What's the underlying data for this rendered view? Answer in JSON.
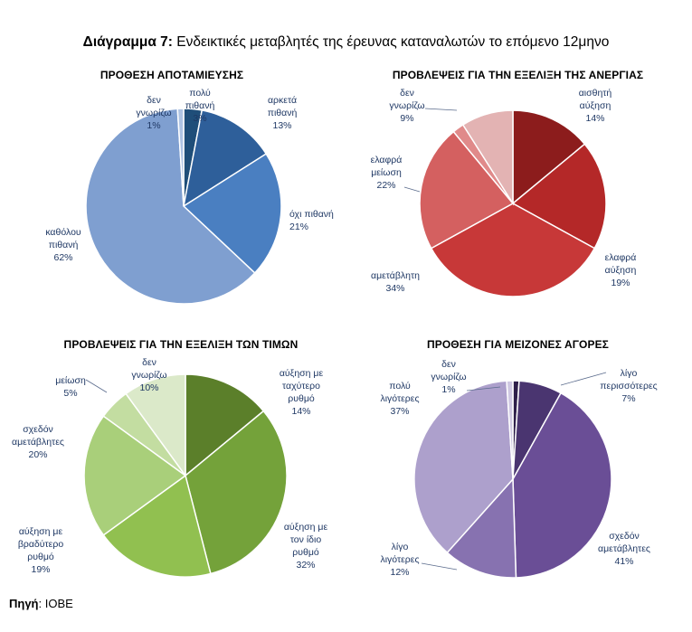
{
  "figure": {
    "title_prefix": "Διάγραμμα 7:",
    "title_text": "Ενδεικτικές μεταβλητές της έρευνας καταναλωτών το επόμενο 12μηνο",
    "source_prefix": "Πηγή",
    "source_text": ": IOBE"
  },
  "chart_data": [
    {
      "type": "pie",
      "title": "ΠΡΟΘΕΣΗ ΑΠΟΤΑΜΙΕΥΣΗΣ",
      "slices": [
        {
          "label": [
            "πολύ",
            "πιθανή"
          ],
          "pct": "3%",
          "value": 3,
          "color": "#1f4e79"
        },
        {
          "label": [
            "αρκετά",
            "πιθανή"
          ],
          "pct": "13%",
          "value": 13,
          "color": "#2e5f9a"
        },
        {
          "label": [
            "όχι πιθανή"
          ],
          "pct": "21%",
          "value": 21,
          "color": "#4a7fc1"
        },
        {
          "label": [
            "καθόλου",
            "πιθανή"
          ],
          "pct": "62%",
          "value": 62,
          "color": "#7f9fd0"
        },
        {
          "label": [
            "δεν",
            "γνωρίζω"
          ],
          "pct": "1%",
          "value": 1,
          "color": "#aec3e3"
        }
      ]
    },
    {
      "type": "pie",
      "title": "ΠΡΟΒΛΕΨΕΙΣ ΓΙΑ ΤΗΝ ΕΞΕΛΙΞΗ ΤΗΣ ΑΝΕΡΓΙΑΣ",
      "slices": [
        {
          "label": [
            "αισθητή",
            "αύξηση"
          ],
          "pct": "14%",
          "value": 14,
          "color": "#8c1c1c"
        },
        {
          "label": [
            "ελαφρά",
            "αύξηση"
          ],
          "pct": "19%",
          "value": 19,
          "color": "#b42828"
        },
        {
          "label": [
            "αμετάβλητη"
          ],
          "pct": "34%",
          "value": 34,
          "color": "#c73838"
        },
        {
          "label": [
            "ελαφρά",
            "μείωση"
          ],
          "pct": "22%",
          "value": 22,
          "color": "#d46060"
        },
        {
          "label": [],
          "pct": "",
          "value": 2,
          "color": "#e08a8a"
        },
        {
          "label": [
            "δεν",
            "γνωρίζω"
          ],
          "pct": "9%",
          "value": 9,
          "color": "#e3b3b3"
        }
      ]
    },
    {
      "type": "pie",
      "title": "ΠΡΟΒΛΕΨΕΙΣ ΓΙΑ ΤΗΝ ΕΞΕΛΙΞΗ ΤΩΝ ΤΙΜΩΝ",
      "slices": [
        {
          "label": [
            "αύξηση με",
            "ταχύτερο",
            "ρυθμό"
          ],
          "pct": "14%",
          "value": 14,
          "color": "#5b7f2a"
        },
        {
          "label": [
            "αύξηση με",
            "τον ίδιο",
            "ρυθμό"
          ],
          "pct": "32%",
          "value": 32,
          "color": "#74a23a"
        },
        {
          "label": [
            "αύξηση με",
            "βραδύτερο",
            "ρυθμό"
          ],
          "pct": "19%",
          "value": 19,
          "color": "#91c050"
        },
        {
          "label": [
            "σχεδόν",
            "αμετάβλητες"
          ],
          "pct": "20%",
          "value": 20,
          "color": "#a9cf7a"
        },
        {
          "label": [
            "μείωση"
          ],
          "pct": "5%",
          "value": 5,
          "color": "#c3dda1"
        },
        {
          "label": [
            "δεν",
            "γνωρίζω"
          ],
          "pct": "10%",
          "value": 10,
          "color": "#dbe9c9"
        }
      ]
    },
    {
      "type": "pie",
      "title": "ΠΡΟΘΕΣΗ ΓΙΑ ΜΕΙΖΟΝΕΣ ΑΓΟΡΕΣ",
      "slices": [
        {
          "label": [],
          "pct": "",
          "value": 1,
          "color": "#2e1f4a"
        },
        {
          "label": [
            "λίγο",
            "περισσότερες"
          ],
          "pct": "7%",
          "value": 7,
          "color": "#4a3570"
        },
        {
          "label": [
            "σχεδόν",
            "αμετάβλητες"
          ],
          "pct": "41%",
          "value": 41,
          "color": "#6a4e96"
        },
        {
          "label": [
            "λίγο",
            "λιγότερες"
          ],
          "pct": "12%",
          "value": 12,
          "color": "#8772b0"
        },
        {
          "label": [
            "πολύ",
            "λιγότερες"
          ],
          "pct": "37%",
          "value": 37,
          "color": "#ada0cc"
        },
        {
          "label": [
            "δεν",
            "γνωρίζω"
          ],
          "pct": "1%",
          "value": 1,
          "color": "#cfc8e2"
        }
      ]
    }
  ]
}
